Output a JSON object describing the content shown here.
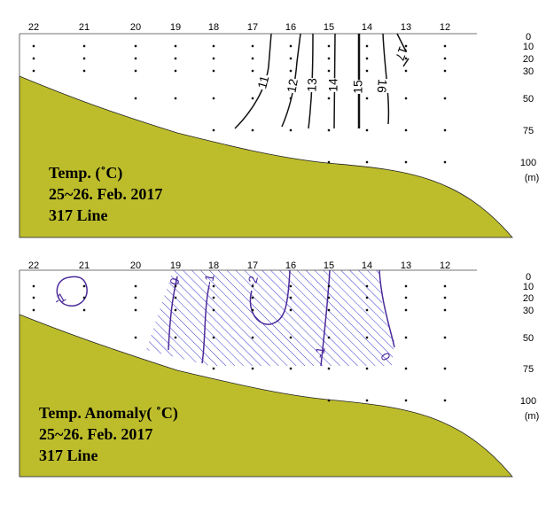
{
  "panels": [
    {
      "stations": [
        "22",
        "21",
        "20",
        "19",
        "18",
        "17",
        "16",
        "15",
        "14",
        "13",
        "12"
      ],
      "depths": [
        "0",
        "10",
        "20",
        "30",
        "50",
        "75",
        "100"
      ],
      "depth_unit": "(m)",
      "contour_labels": [
        "11",
        "12",
        "13",
        "14",
        "15",
        "16",
        "17"
      ],
      "title_lines": [
        "Temp. (˚C)",
        "25~26. Feb. 2017",
        "317 Line"
      ]
    },
    {
      "stations": [
        "22",
        "21",
        "20",
        "19",
        "18",
        "17",
        "16",
        "15",
        "14",
        "13",
        "12"
      ],
      "depths": [
        "0",
        "10",
        "20",
        "30",
        "50",
        "75",
        "100"
      ],
      "depth_unit": "(m)",
      "contour_labels": [
        "-1",
        "0",
        "-1",
        "-2",
        "-1",
        "0"
      ],
      "title_lines": [
        "Temp. Anomaly( ˚C)",
        "25~26. Feb. 2017",
        "317 Line"
      ]
    }
  ]
}
